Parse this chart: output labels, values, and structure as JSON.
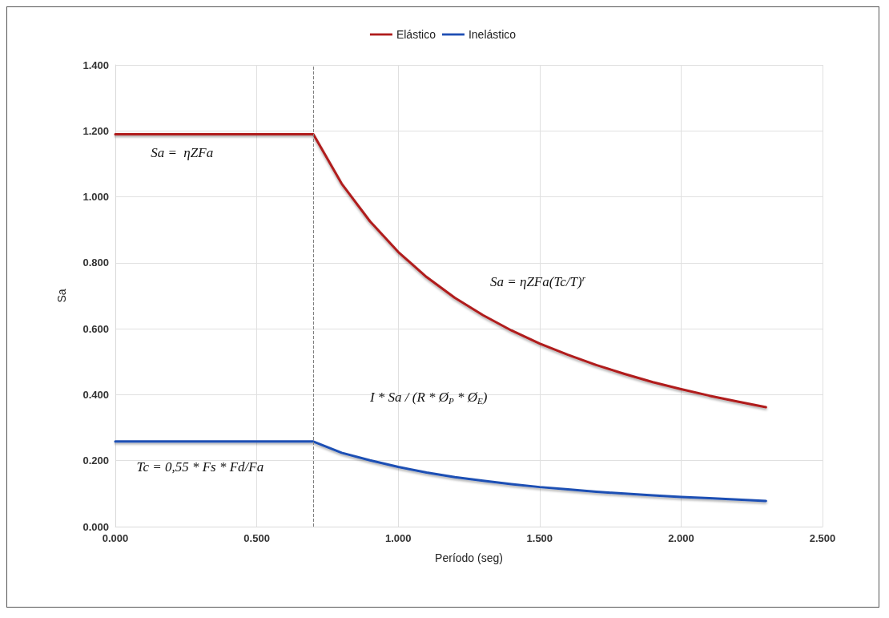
{
  "chart_data": {
    "type": "line",
    "xlabel": "Período (seg)",
    "ylabel": "Sa",
    "x": [
      0,
      0.7,
      0.8,
      0.9,
      1.0,
      1.1,
      1.2,
      1.3,
      1.4,
      1.5,
      1.6,
      1.7,
      1.8,
      1.9,
      2.0,
      2.1,
      2.2,
      2.3
    ],
    "series": [
      {
        "name": "Elástico",
        "color": "#b01c1c",
        "values": [
          1.19,
          1.19,
          1.04,
          0.926,
          0.833,
          0.757,
          0.694,
          0.641,
          0.595,
          0.555,
          0.521,
          0.49,
          0.463,
          0.438,
          0.417,
          0.397,
          0.379,
          0.362
        ]
      },
      {
        "name": "Inelástico",
        "color": "#1f4fb4",
        "values": [
          0.258,
          0.258,
          0.224,
          0.201,
          0.181,
          0.164,
          0.15,
          0.139,
          0.129,
          0.12,
          0.113,
          0.106,
          0.1,
          0.095,
          0.09,
          0.086,
          0.082,
          0.078
        ]
      }
    ],
    "xlim": [
      0,
      2.5
    ],
    "xticks": [
      {
        "value": 0,
        "label": "0.000"
      },
      {
        "value": 0.5,
        "label": "0.500"
      },
      {
        "value": 1,
        "label": "1.000"
      },
      {
        "value": 1.5,
        "label": "1.500"
      },
      {
        "value": 2,
        "label": "2.000"
      },
      {
        "value": 2.5,
        "label": "2.500"
      }
    ],
    "ylim": [
      0,
      1.4
    ],
    "yticks": [
      {
        "value": 0,
        "label": "0.000"
      },
      {
        "value": 0.2,
        "label": "0.200"
      },
      {
        "value": 0.4,
        "label": "0.400"
      },
      {
        "value": 0.6,
        "label": "0.600"
      },
      {
        "value": 0.8,
        "label": "0.800"
      },
      {
        "value": 1.0,
        "label": "1.000"
      },
      {
        "value": 1.2,
        "label": "1.200"
      },
      {
        "value": 1.4,
        "label": "1.400"
      }
    ],
    "ref_lines": [
      {
        "axis": "x",
        "value": 0.7,
        "label": null,
        "color": "#808080",
        "line_style": "dashed"
      }
    ],
    "annotations": [
      "Sa =  ηZFa",
      "Sa = ηZFa(Tc/T)$^{r}$",
      "I * Sa / (R * Ø$_{P}$ * Ø$_{E}$)",
      "Tc = 0,55 * Fs * Fd/Fa"
    ],
    "grid": true,
    "legend": "top",
    "marker": "none",
    "line_style": "solid"
  }
}
